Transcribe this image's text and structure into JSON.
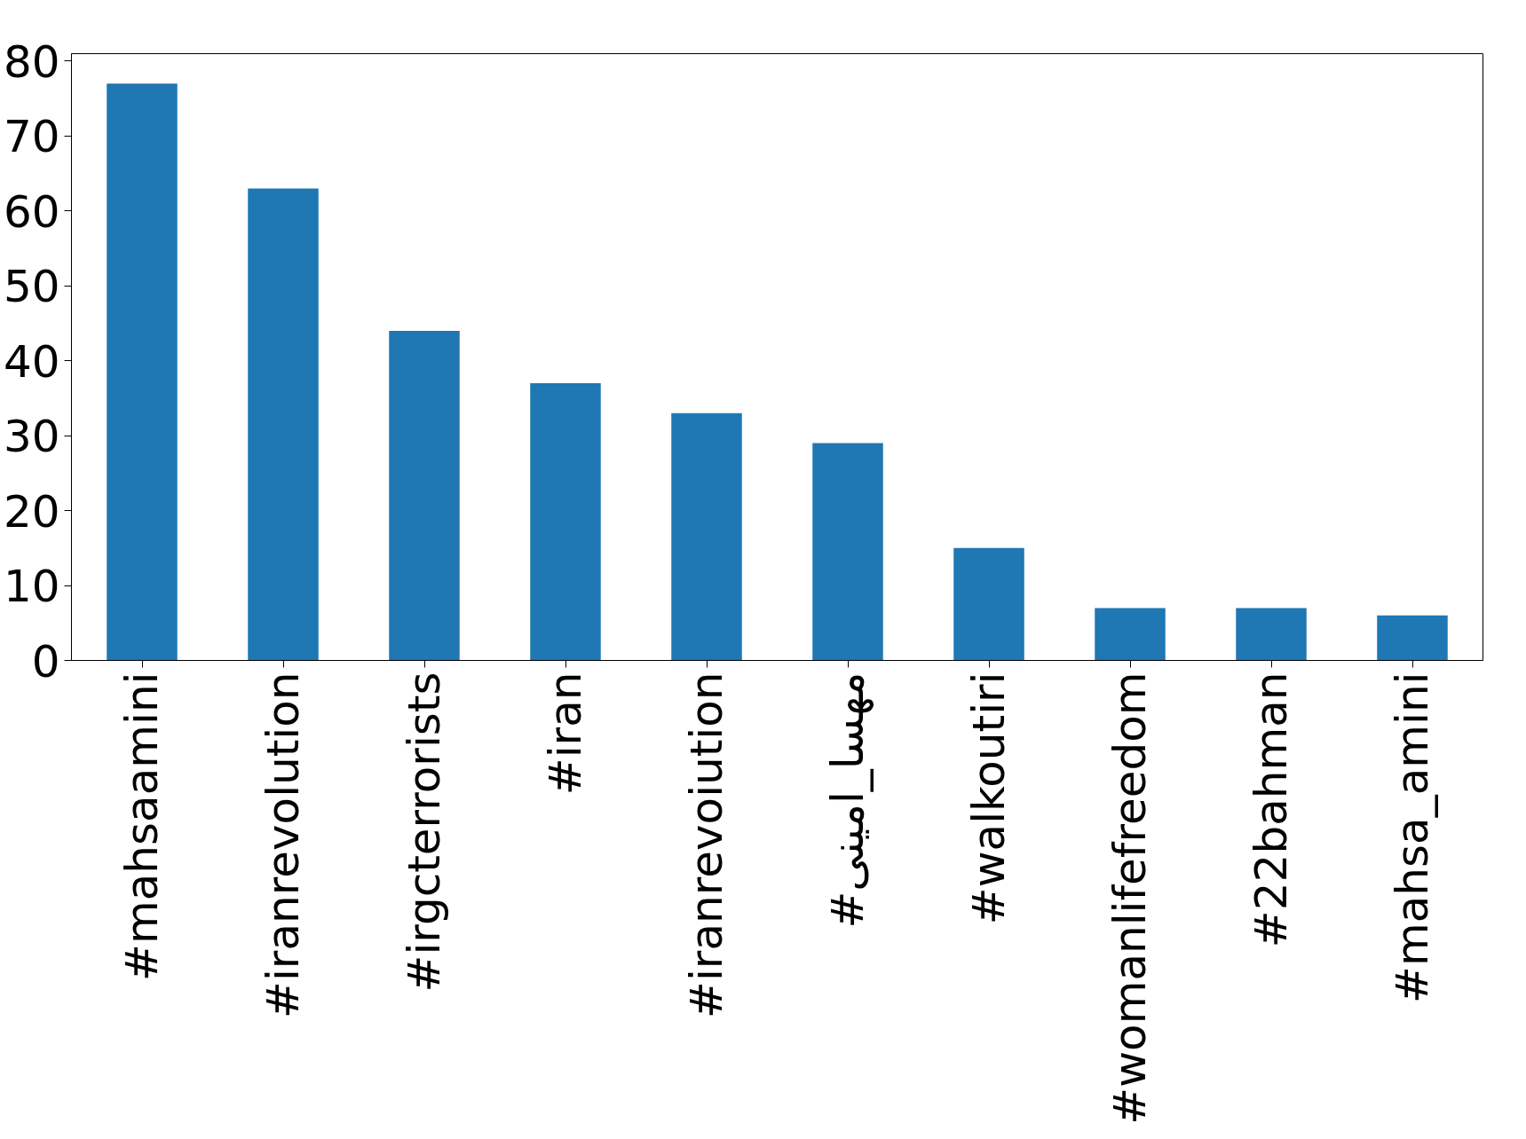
{
  "chart_data": {
    "type": "bar",
    "categories": [
      "#mahsaamini",
      "#iranrevolution",
      "#irgcterrorists",
      "#iran",
      "#iranrevoiution",
      "#مهسا_امینی",
      "#walkoutiri",
      "#womanlifefreedom",
      "#22bahman",
      "#mahsa_amini"
    ],
    "values": [
      77,
      63,
      44,
      37,
      33,
      29,
      15,
      7,
      7,
      6
    ],
    "color": "#1f77b4",
    "ylim": [
      0,
      81
    ],
    "yticks": [
      0,
      10,
      20,
      30,
      40,
      50,
      60,
      70,
      80
    ],
    "grid": false
  }
}
